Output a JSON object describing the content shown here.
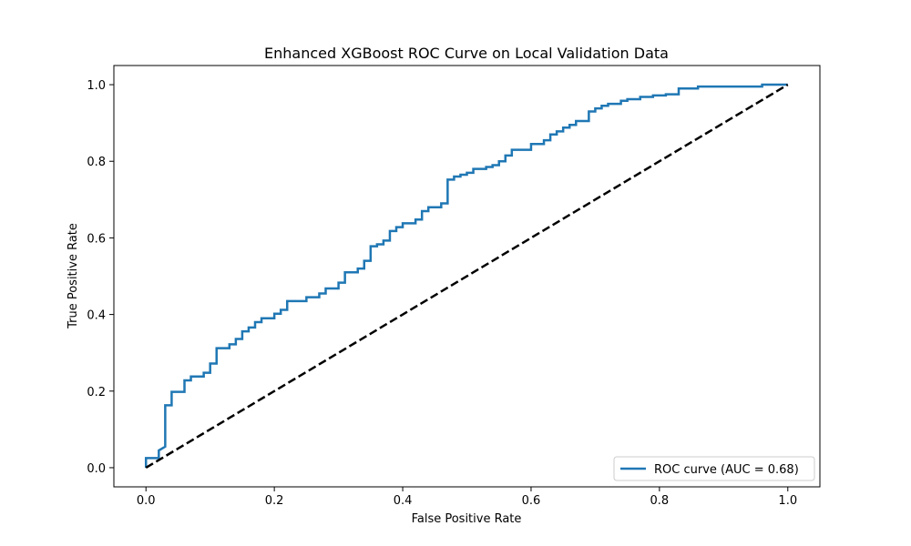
{
  "chart_data": {
    "type": "line",
    "title": "Enhanced XGBoost ROC Curve on Local Validation Data",
    "xlabel": "False Positive Rate",
    "ylabel": "True Positive Rate",
    "xlim": [
      -0.05,
      1.05
    ],
    "ylim": [
      -0.05,
      1.05
    ],
    "xticks": [
      "0.0",
      "0.2",
      "0.4",
      "0.6",
      "0.8",
      "1.0"
    ],
    "yticks": [
      "0.0",
      "0.2",
      "0.4",
      "0.6",
      "0.8",
      "1.0"
    ],
    "grid": false,
    "legend_position": "lower-right",
    "series": [
      {
        "name": "ROC curve (AUC = 0.68)",
        "color": "#1f77b4",
        "style": "solid",
        "x": [
          0.0,
          0.0,
          0.02,
          0.02,
          0.03,
          0.03,
          0.04,
          0.04,
          0.06,
          0.06,
          0.07,
          0.07,
          0.09,
          0.09,
          0.1,
          0.1,
          0.11,
          0.11,
          0.13,
          0.13,
          0.14,
          0.14,
          0.15,
          0.15,
          0.16,
          0.16,
          0.17,
          0.17,
          0.18,
          0.18,
          0.2,
          0.2,
          0.21,
          0.21,
          0.22,
          0.22,
          0.25,
          0.25,
          0.27,
          0.27,
          0.28,
          0.28,
          0.3,
          0.3,
          0.31,
          0.31,
          0.33,
          0.33,
          0.34,
          0.34,
          0.35,
          0.35,
          0.36,
          0.36,
          0.37,
          0.37,
          0.38,
          0.38,
          0.39,
          0.39,
          0.4,
          0.4,
          0.42,
          0.42,
          0.43,
          0.43,
          0.44,
          0.44,
          0.46,
          0.46,
          0.47,
          0.47,
          0.48,
          0.48,
          0.49,
          0.49,
          0.5,
          0.5,
          0.51,
          0.51,
          0.53,
          0.53,
          0.54,
          0.54,
          0.55,
          0.55,
          0.56,
          0.56,
          0.57,
          0.57,
          0.6,
          0.6,
          0.62,
          0.62,
          0.63,
          0.63,
          0.64,
          0.64,
          0.65,
          0.65,
          0.66,
          0.66,
          0.67,
          0.67,
          0.69,
          0.69,
          0.7,
          0.7,
          0.71,
          0.71,
          0.72,
          0.72,
          0.74,
          0.74,
          0.75,
          0.75,
          0.77,
          0.77,
          0.79,
          0.79,
          0.81,
          0.81,
          0.83,
          0.83,
          0.86,
          0.86,
          0.96,
          0.96,
          1.0
        ],
        "y": [
          0.0,
          0.025,
          0.025,
          0.045,
          0.055,
          0.163,
          0.163,
          0.198,
          0.198,
          0.228,
          0.228,
          0.238,
          0.238,
          0.248,
          0.248,
          0.272,
          0.272,
          0.312,
          0.312,
          0.322,
          0.322,
          0.336,
          0.336,
          0.356,
          0.356,
          0.366,
          0.366,
          0.38,
          0.38,
          0.39,
          0.39,
          0.402,
          0.402,
          0.412,
          0.412,
          0.435,
          0.435,
          0.445,
          0.445,
          0.455,
          0.455,
          0.468,
          0.468,
          0.483,
          0.483,
          0.51,
          0.51,
          0.52,
          0.52,
          0.54,
          0.54,
          0.578,
          0.578,
          0.583,
          0.583,
          0.593,
          0.593,
          0.618,
          0.618,
          0.628,
          0.628,
          0.638,
          0.638,
          0.648,
          0.648,
          0.67,
          0.67,
          0.68,
          0.68,
          0.69,
          0.69,
          0.752,
          0.752,
          0.76,
          0.76,
          0.765,
          0.765,
          0.77,
          0.77,
          0.78,
          0.78,
          0.785,
          0.785,
          0.79,
          0.79,
          0.8,
          0.8,
          0.815,
          0.815,
          0.83,
          0.83,
          0.845,
          0.845,
          0.855,
          0.855,
          0.87,
          0.87,
          0.878,
          0.878,
          0.888,
          0.888,
          0.895,
          0.895,
          0.905,
          0.905,
          0.93,
          0.93,
          0.938,
          0.938,
          0.945,
          0.945,
          0.95,
          0.95,
          0.958,
          0.958,
          0.962,
          0.962,
          0.968,
          0.968,
          0.972,
          0.972,
          0.975,
          0.975,
          0.99,
          0.99,
          0.995,
          0.995,
          1.0,
          1.0
        ]
      },
      {
        "color": "#000000",
        "style": "dashed",
        "x": [
          0.0,
          1.0
        ],
        "y": [
          0.0,
          1.0
        ]
      }
    ]
  }
}
